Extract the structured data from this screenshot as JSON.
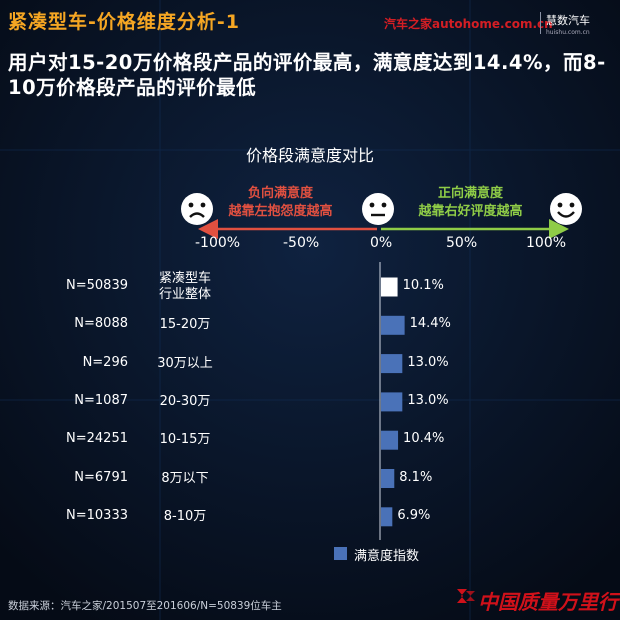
{
  "title": "紧凑型车-价格维度分析-1",
  "brand_autohome": "汽车之家autohome.com.cn",
  "brand_huishu": "慧数汽车",
  "brand_huishu_sub": "huishu.com.cn",
  "headline": "用户对15-20万价格段产品的评价最高，满意度达到14.4%，而8-10万价格段产品的评价最低",
  "scale": {
    "negative_label_line1": "负向满意度",
    "negative_label_line2": "越靠左抱怨度越高",
    "positive_label_line1": "正向满意度",
    "positive_label_line2": "越靠右好评度越高",
    "ticks": [
      "-100%",
      "-50%",
      "0%",
      "50%",
      "100%"
    ],
    "faces": [
      "sad-face-icon",
      "neutral-face-icon",
      "happy-face-icon"
    ]
  },
  "legend_label": "满意度指数",
  "source": "数据来源：汽车之家/201507至201606/N=50839位车主",
  "footer_brand": "中国质量万里行",
  "colors": {
    "background": "#07101f",
    "title": "#f5a623",
    "bar": "#4a72b8",
    "bar_highlight": "#ffffff",
    "negative": "#e05040",
    "positive": "#8fcc47"
  },
  "chart_data": {
    "type": "bar",
    "orientation": "horizontal",
    "title": "价格段满意度对比",
    "categories": [
      "紧凑型车行业整体",
      "15-20万",
      "30万以上",
      "20-30万",
      "10-15万",
      "8万以下",
      "8-10万"
    ],
    "category_lines": [
      [
        "紧凑型车",
        "行业整体"
      ],
      [
        "15-20万"
      ],
      [
        "30万以上"
      ],
      [
        "20-30万"
      ],
      [
        "10-15万"
      ],
      [
        "8万以下"
      ],
      [
        "8-10万"
      ]
    ],
    "sample_sizes": [
      "N=50839",
      "N=8088",
      "N=296",
      "N=1087",
      "N=24251",
      "N=6791",
      "N=10333"
    ],
    "series": [
      {
        "name": "满意度指数",
        "values": [
          10.1,
          14.4,
          13.0,
          13.0,
          10.4,
          8.1,
          6.9
        ]
      }
    ],
    "value_labels": [
      "10.1%",
      "14.4%",
      "13.0%",
      "13.0%",
      "10.4%",
      "8.1%",
      "6.9%"
    ],
    "highlight_index": 0,
    "xlim": [
      -100,
      100
    ],
    "x_ticks": [
      -100,
      -50,
      0,
      50,
      100
    ],
    "legend": "bottom"
  }
}
